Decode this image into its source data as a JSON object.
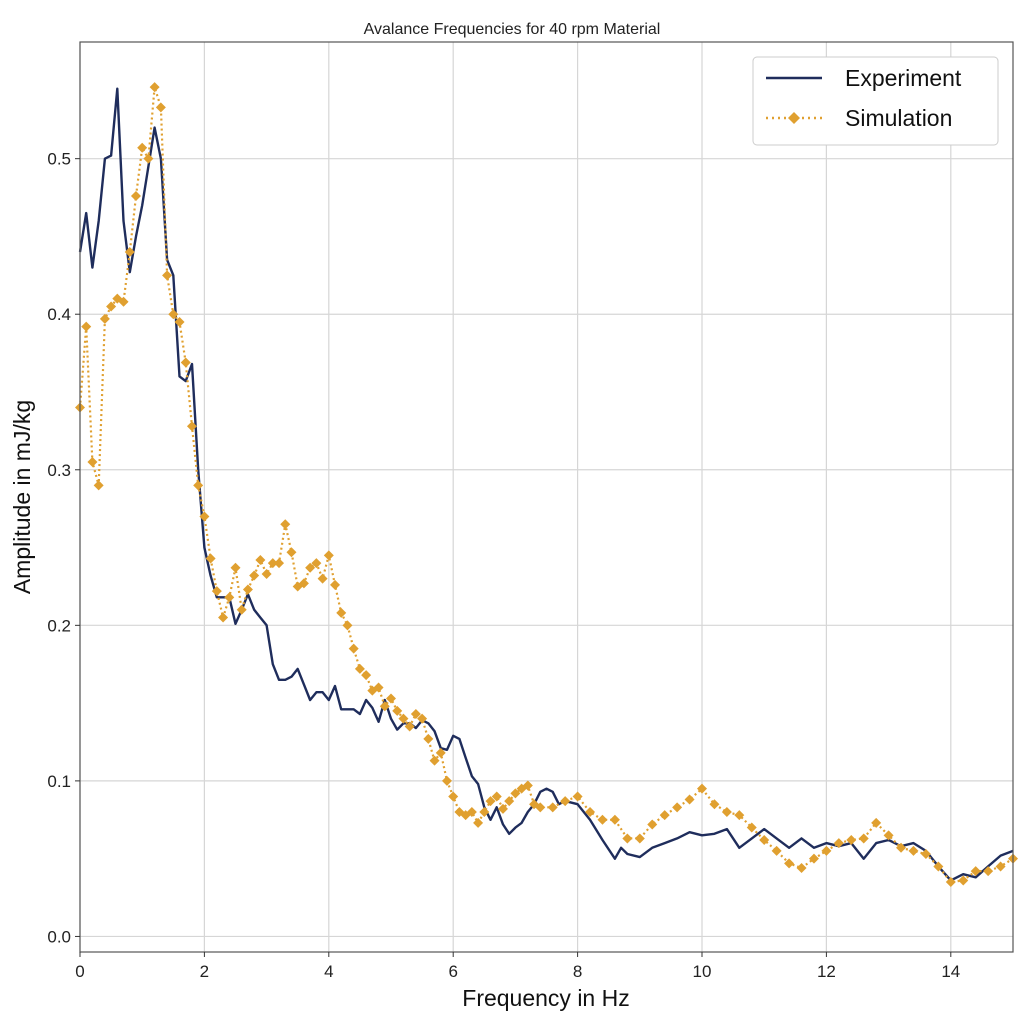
{
  "chart_data": {
    "type": "line",
    "title": "Avalance Frequencies for 40 rpm Material",
    "xlabel": "Frequency in Hz",
    "ylabel": "Amplitude in mJ/kg",
    "xlim": [
      0,
      15
    ],
    "ylim": [
      -0.01,
      0.575
    ],
    "xticks": [
      0,
      2,
      4,
      6,
      8,
      10,
      12,
      14
    ],
    "yticks": [
      0.0,
      0.1,
      0.2,
      0.3,
      0.4,
      0.5
    ],
    "grid": true,
    "legend_position": "top-right",
    "series": [
      {
        "name": "Experiment",
        "color": "#1f2d5c",
        "style": "solid",
        "x": [
          0,
          0.1,
          0.2,
          0.3,
          0.4,
          0.5,
          0.6,
          0.7,
          0.8,
          0.9,
          1.0,
          1.1,
          1.2,
          1.3,
          1.4,
          1.5,
          1.6,
          1.7,
          1.8,
          1.9,
          2.0,
          2.1,
          2.2,
          2.3,
          2.4,
          2.5,
          2.6,
          2.7,
          2.8,
          2.9,
          3.0,
          3.1,
          3.2,
          3.3,
          3.4,
          3.5,
          3.6,
          3.7,
          3.8,
          3.9,
          4.0,
          4.1,
          4.2,
          4.4,
          4.5,
          4.6,
          4.7,
          4.8,
          4.9,
          5.0,
          5.1,
          5.2,
          5.3,
          5.4,
          5.5,
          5.6,
          5.7,
          5.8,
          5.9,
          6.0,
          6.1,
          6.2,
          6.3,
          6.4,
          6.5,
          6.6,
          6.7,
          6.8,
          6.9,
          7.0,
          7.1,
          7.2,
          7.3,
          7.4,
          7.5,
          7.6,
          7.7,
          7.8,
          8.0,
          8.2,
          8.4,
          8.6,
          8.7,
          8.8,
          9.0,
          9.2,
          9.4,
          9.6,
          9.8,
          10.0,
          10.2,
          10.4,
          10.6,
          10.8,
          11.0,
          11.2,
          11.4,
          11.6,
          11.8,
          12.0,
          12.2,
          12.4,
          12.6,
          12.8,
          13.0,
          13.2,
          13.4,
          13.6,
          13.8,
          14.0,
          14.2,
          14.4,
          14.6,
          14.8,
          15.0
        ],
        "y": [
          0.44,
          0.465,
          0.43,
          0.46,
          0.5,
          0.502,
          0.545,
          0.46,
          0.427,
          0.45,
          0.47,
          0.495,
          0.52,
          0.5,
          0.435,
          0.425,
          0.36,
          0.357,
          0.368,
          0.3,
          0.25,
          0.232,
          0.218,
          0.218,
          0.218,
          0.201,
          0.21,
          0.22,
          0.21,
          0.205,
          0.2,
          0.175,
          0.165,
          0.165,
          0.167,
          0.172,
          0.162,
          0.152,
          0.157,
          0.157,
          0.152,
          0.161,
          0.146,
          0.146,
          0.143,
          0.152,
          0.147,
          0.138,
          0.152,
          0.14,
          0.133,
          0.137,
          0.137,
          0.134,
          0.139,
          0.137,
          0.132,
          0.121,
          0.12,
          0.129,
          0.127,
          0.115,
          0.103,
          0.098,
          0.083,
          0.075,
          0.083,
          0.072,
          0.066,
          0.07,
          0.073,
          0.08,
          0.085,
          0.093,
          0.095,
          0.093,
          0.085,
          0.087,
          0.085,
          0.075,
          0.062,
          0.05,
          0.057,
          0.053,
          0.051,
          0.057,
          0.06,
          0.063,
          0.067,
          0.065,
          0.066,
          0.069,
          0.057,
          0.063,
          0.069,
          0.063,
          0.057,
          0.063,
          0.057,
          0.06,
          0.058,
          0.06,
          0.05,
          0.06,
          0.062,
          0.058,
          0.06,
          0.055,
          0.045,
          0.036,
          0.04,
          0.038,
          0.045,
          0.052,
          0.055
        ]
      },
      {
        "name": "Simulation",
        "color": "#e0a030",
        "style": "dotted-diamond",
        "x": [
          0,
          0.1,
          0.2,
          0.3,
          0.4,
          0.5,
          0.6,
          0.7,
          0.8,
          0.9,
          1.0,
          1.1,
          1.2,
          1.3,
          1.4,
          1.5,
          1.6,
          1.7,
          1.8,
          1.9,
          2.0,
          2.1,
          2.2,
          2.3,
          2.4,
          2.5,
          2.6,
          2.7,
          2.8,
          2.9,
          3.0,
          3.1,
          3.2,
          3.3,
          3.4,
          3.5,
          3.6,
          3.7,
          3.8,
          3.9,
          4.0,
          4.1,
          4.2,
          4.3,
          4.4,
          4.5,
          4.6,
          4.7,
          4.8,
          4.9,
          5.0,
          5.1,
          5.2,
          5.3,
          5.4,
          5.5,
          5.6,
          5.7,
          5.8,
          5.9,
          6.0,
          6.1,
          6.2,
          6.3,
          6.4,
          6.5,
          6.6,
          6.7,
          6.8,
          6.9,
          7.0,
          7.1,
          7.2,
          7.3,
          7.4,
          7.6,
          7.8,
          8.0,
          8.2,
          8.4,
          8.6,
          8.8,
          9.0,
          9.2,
          9.4,
          9.6,
          9.8,
          10.0,
          10.2,
          10.4,
          10.6,
          10.8,
          11.0,
          11.2,
          11.4,
          11.6,
          11.8,
          12.0,
          12.2,
          12.4,
          12.6,
          12.8,
          13.0,
          13.2,
          13.4,
          13.6,
          13.8,
          14.0,
          14.2,
          14.4,
          14.6,
          14.8,
          15.0
        ],
        "y": [
          0.34,
          0.392,
          0.305,
          0.29,
          0.397,
          0.405,
          0.41,
          0.408,
          0.44,
          0.476,
          0.507,
          0.5,
          0.546,
          0.533,
          0.425,
          0.4,
          0.395,
          0.369,
          0.328,
          0.29,
          0.27,
          0.243,
          0.222,
          0.205,
          0.218,
          0.237,
          0.21,
          0.223,
          0.232,
          0.242,
          0.233,
          0.24,
          0.24,
          0.265,
          0.247,
          0.225,
          0.227,
          0.237,
          0.24,
          0.23,
          0.245,
          0.226,
          0.208,
          0.2,
          0.185,
          0.172,
          0.168,
          0.158,
          0.16,
          0.148,
          0.153,
          0.145,
          0.14,
          0.135,
          0.143,
          0.14,
          0.127,
          0.113,
          0.118,
          0.1,
          0.09,
          0.08,
          0.078,
          0.08,
          0.073,
          0.08,
          0.087,
          0.09,
          0.082,
          0.087,
          0.092,
          0.095,
          0.097,
          0.085,
          0.083,
          0.083,
          0.087,
          0.09,
          0.08,
          0.075,
          0.075,
          0.063,
          0.063,
          0.072,
          0.078,
          0.083,
          0.088,
          0.095,
          0.085,
          0.08,
          0.078,
          0.07,
          0.062,
          0.055,
          0.047,
          0.044,
          0.05,
          0.055,
          0.06,
          0.062,
          0.063,
          0.073,
          0.065,
          0.057,
          0.055,
          0.053,
          0.045,
          0.035,
          0.036,
          0.042,
          0.042,
          0.045,
          0.05
        ]
      }
    ]
  }
}
